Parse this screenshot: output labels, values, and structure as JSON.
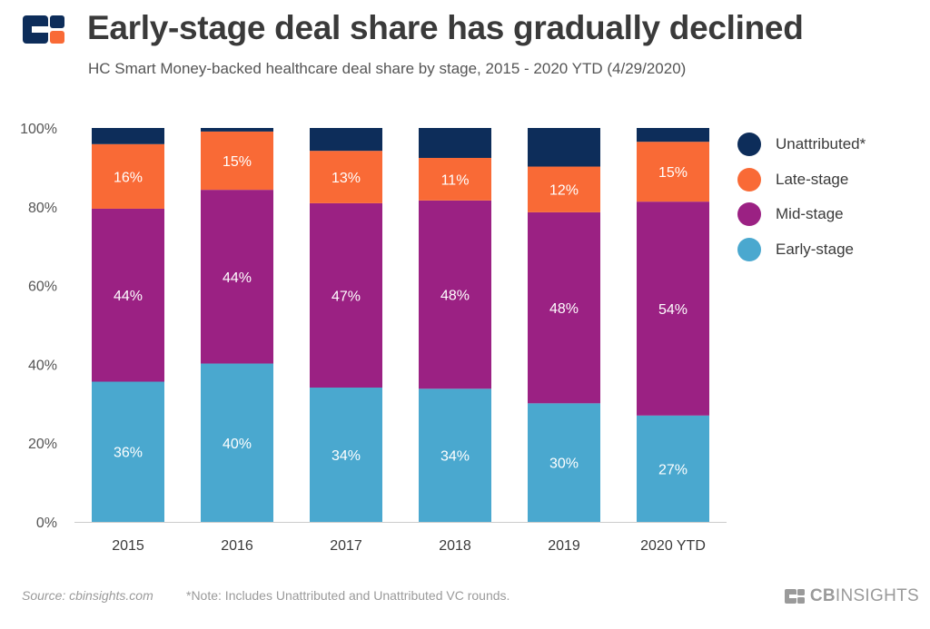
{
  "title": "Early-stage deal share has gradually declined",
  "subtitle": "HC Smart Money-backed healthcare deal share by stage, 2015 - 2020 YTD (4/29/2020)",
  "footer": {
    "source": "Source: cbinsights.com",
    "note": "*Note: Includes Unattributed and Unattributed VC rounds.",
    "brand_bold": "CB",
    "brand_rest": "INSIGHTS"
  },
  "colors": {
    "early": "#4aa8cf",
    "mid": "#9b2183",
    "late": "#f96a36",
    "unattributed": "#0d2d5a",
    "logo_blue": "#0d2d5a",
    "logo_orange": "#f96a36"
  },
  "chart_data": {
    "type": "bar",
    "stacked": true,
    "categories": [
      "2015",
      "2016",
      "2017",
      "2018",
      "2019",
      "2020 YTD"
    ],
    "series": [
      {
        "name": "Early-stage",
        "color": "#4aa8cf",
        "values": [
          35.6,
          40.2,
          34.1,
          33.8,
          30.1,
          27.0
        ],
        "labels": [
          "36%",
          "40%",
          "34%",
          "34%",
          "30%",
          "27%"
        ]
      },
      {
        "name": "Mid-stage",
        "color": "#9b2183",
        "values": [
          43.9,
          44.1,
          46.8,
          47.8,
          48.5,
          54.3
        ],
        "labels": [
          "44%",
          "44%",
          "47%",
          "48%",
          "48%",
          "54%"
        ]
      },
      {
        "name": "Late-stage",
        "color": "#f96a36",
        "values": [
          16.4,
          14.8,
          13.3,
          10.8,
          11.6,
          15.2
        ],
        "labels": [
          "16%",
          "15%",
          "13%",
          "11%",
          "12%",
          "15%"
        ]
      },
      {
        "name": "Unattributed*",
        "color": "#0d2d5a",
        "values": [
          4.1,
          0.9,
          5.8,
          7.6,
          9.8,
          3.5
        ],
        "labels": [
          "",
          "",
          "",
          "",
          "",
          ""
        ]
      }
    ],
    "y_ticks": [
      "0%",
      "20%",
      "40%",
      "60%",
      "80%",
      "100%"
    ],
    "ylim": [
      0,
      100
    ],
    "legend_position": "right",
    "legend_order": [
      "Unattributed*",
      "Late-stage",
      "Mid-stage",
      "Early-stage"
    ],
    "grid": false
  }
}
